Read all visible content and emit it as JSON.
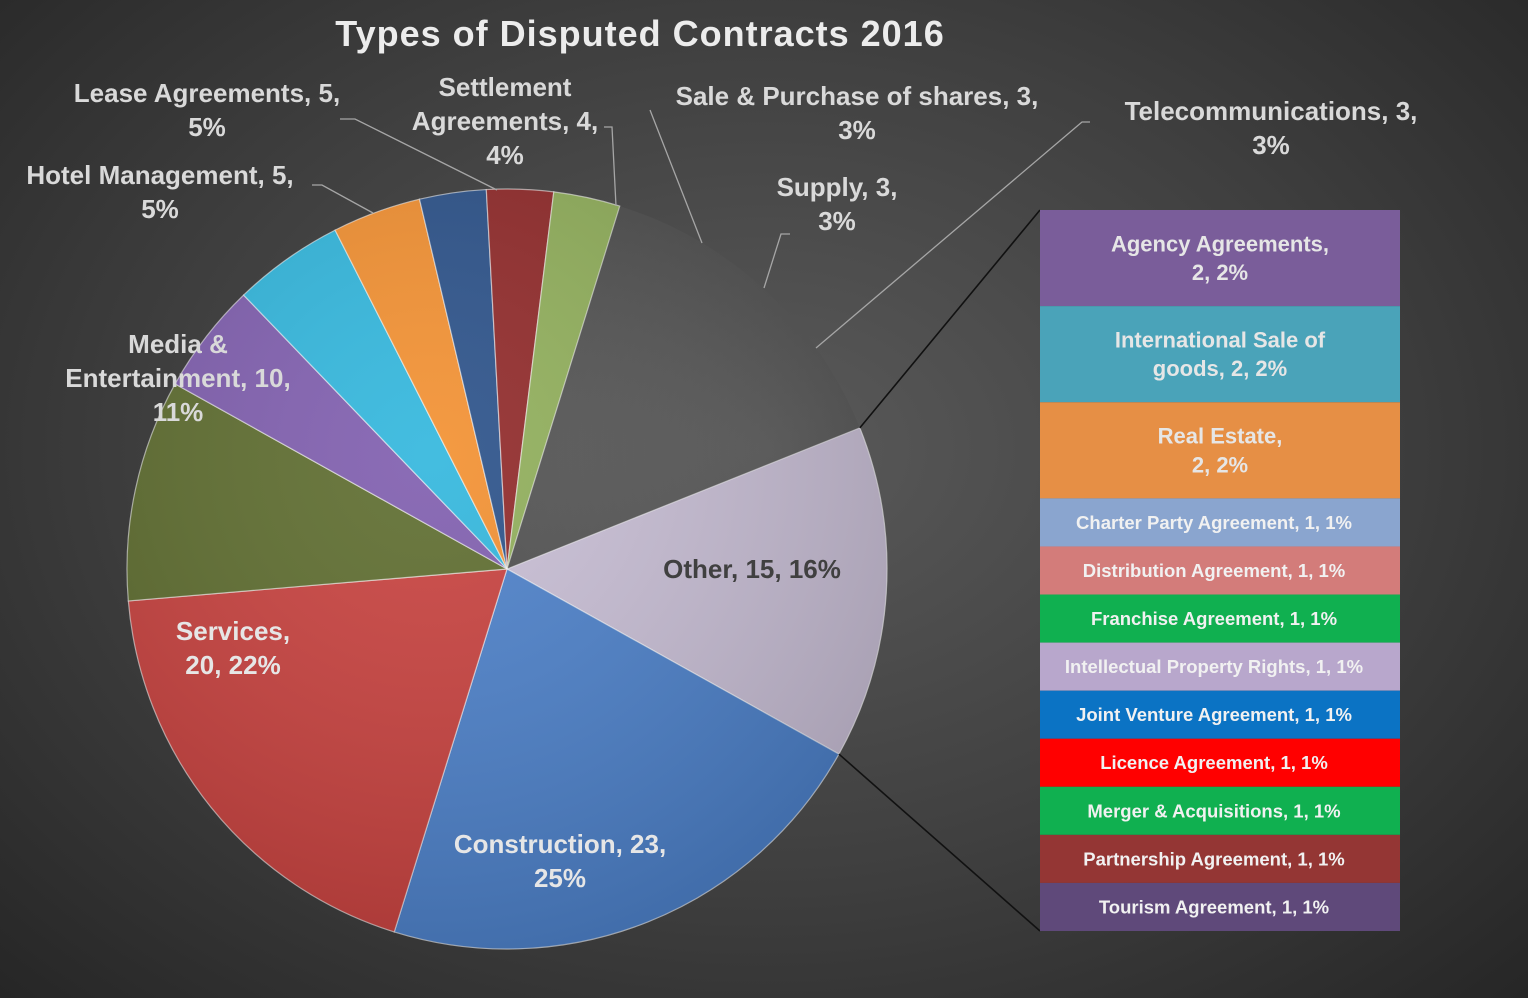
{
  "chart_data": {
    "type": "pie",
    "subtype": "bar-of-pie",
    "title": "Types of Disputed Contracts 2016",
    "slices": [
      {
        "name": "Other",
        "value": 15,
        "percent": "16%",
        "label_lines": [
          "Other, 15, 16%"
        ],
        "color": "#c7bdd4"
      },
      {
        "name": "Construction",
        "value": 23,
        "percent": "25%",
        "label_lines": [
          "Construction, 23,",
          "25%"
        ],
        "color": "#4a7fc9"
      },
      {
        "name": "Services",
        "value": 20,
        "percent": "22%",
        "label_lines": [
          "Services,",
          "20, 22%"
        ],
        "color": "#c83f3c"
      },
      {
        "name": "Media & Entertainment",
        "value": 10,
        "percent": "11%",
        "label_lines": [
          "Media &",
          "Entertainment, 10,",
          "11%"
        ],
        "color": "#5c6b2c"
      },
      {
        "name": "Hotel Management",
        "value": 5,
        "percent": "5%",
        "label_lines": [
          "Hotel Management, 5,",
          "5%"
        ],
        "color": "#7e5cae"
      },
      {
        "name": "Lease Agreements",
        "value": 5,
        "percent": "5%",
        "label_lines": [
          "Lease Agreements, 5,",
          "5%"
        ],
        "color": "#2fb6dd"
      },
      {
        "name": "Settlement Agreements",
        "value": 4,
        "percent": "4%",
        "label_lines": [
          "Settlement",
          "Agreements, 4,",
          "4%"
        ],
        "color": "#f38f2e"
      },
      {
        "name": "Sale & Purchase of shares",
        "value": 3,
        "percent": "3%",
        "label_lines": [
          "Sale & Purchase of shares, 3,",
          "3%"
        ],
        "color": "#284f88"
      },
      {
        "name": "Supply",
        "value": 3,
        "percent": "3%",
        "label_lines": [
          "Supply, 3,",
          "3%"
        ],
        "color": "#8f2626"
      },
      {
        "name": "Telecommunications",
        "value": 3,
        "percent": "3%",
        "label_lines": [
          "Telecommunications, 3,",
          "3%"
        ],
        "color": "#8fae58"
      }
    ],
    "breakout_bar": [
      {
        "name": "Agency Agreements",
        "value": 2,
        "percent": "2%",
        "label_lines": [
          "Agency Agreements,",
          "2, 2%"
        ],
        "color": "#7a5d9a"
      },
      {
        "name": "International Sale of goods",
        "value": 2,
        "percent": "2%",
        "label_lines": [
          "International Sale of",
          "goods, 2, 2%"
        ],
        "color": "#4aa3b9"
      },
      {
        "name": "Real Estate",
        "value": 2,
        "percent": "2%",
        "label_lines": [
          "Real Estate,",
          "2, 2%"
        ],
        "color": "#e68f45"
      },
      {
        "name": "Charter Party Agreement",
        "value": 1,
        "percent": "1%",
        "label_lines": [
          "Charter Party Agreement, 1, 1%"
        ],
        "color": "#8aa5cf"
      },
      {
        "name": "Distribution Agreement",
        "value": 1,
        "percent": "1%",
        "label_lines": [
          "Distribution Agreement, 1, 1%"
        ],
        "color": "#d37c7a"
      },
      {
        "name": "Franchise Agreement",
        "value": 1,
        "percent": "1%",
        "label_lines": [
          "Franchise Agreement, 1, 1%"
        ],
        "color": "#10b050"
      },
      {
        "name": "Intellectual Property Rights",
        "value": 1,
        "percent": "1%",
        "label_lines": [
          "Intellectual Property Rights, 1, 1%"
        ],
        "color": "#b8a7cc"
      },
      {
        "name": "Joint Venture Agreement",
        "value": 1,
        "percent": "1%",
        "label_lines": [
          "Joint Venture Agreement, 1, 1%"
        ],
        "color": "#0b73c4"
      },
      {
        "name": "Licence Agreement",
        "value": 1,
        "percent": "1%",
        "label_lines": [
          "Licence Agreement, 1, 1%"
        ],
        "color": "#ff0000"
      },
      {
        "name": "Merger &  Acquisitions",
        "value": 1,
        "percent": "1%",
        "label_lines": [
          "Merger &  Acquisitions, 1, 1%"
        ],
        "color": "#10b050"
      },
      {
        "name": "Partnership Agreement",
        "value": 1,
        "percent": "1%",
        "label_lines": [
          "Partnership Agreement, 1, 1%"
        ],
        "color": "#943634"
      },
      {
        "name": "Tourism Agreement",
        "value": 1,
        "percent": "1%",
        "label_lines": [
          "Tourism Agreement, 1, 1%"
        ],
        "color": "#5f497a"
      }
    ],
    "legend": "none",
    "grid": false
  }
}
